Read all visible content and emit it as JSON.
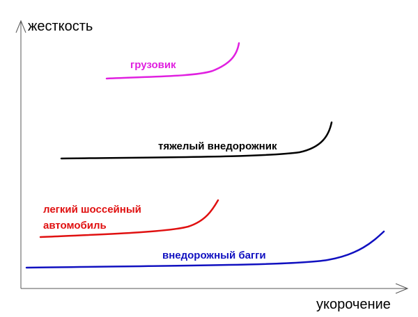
{
  "axes": {
    "y_label": "жесткость",
    "x_label": "укорочение"
  },
  "curves": [
    {
      "label_lines": [
        "грузовик"
      ]
    },
    {
      "label_lines": [
        "тяжелый внедорожник"
      ]
    },
    {
      "label_lines": [
        "легкий шоссейный",
        "автомобиль"
      ]
    },
    {
      "label_lines": [
        "внедорожный багги"
      ]
    }
  ]
}
